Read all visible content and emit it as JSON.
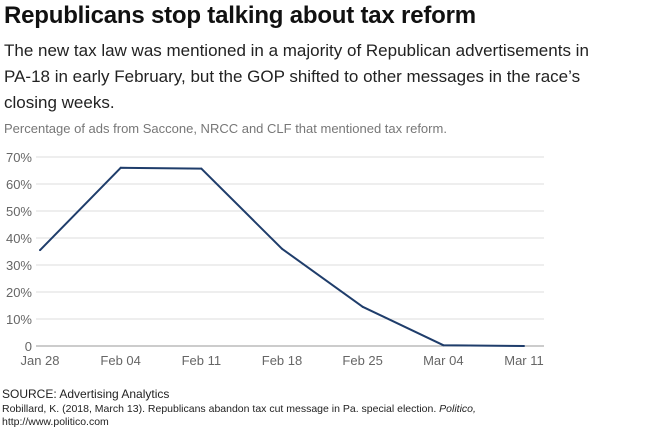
{
  "header": {
    "title": "Republicans stop talking about tax reform",
    "subtitle": "The new tax law was mentioned in a majority of Republican advertisements in PA-18 in early February, but the GOP shifted to other messages in the race’s closing weeks.",
    "note": "Percentage of ads from Saccone, NRCC and CLF that mentioned tax reform."
  },
  "footer": {
    "source": "SOURCE: Advertising Analytics",
    "citation_text": "Robillard, K. (2018, March 13). Republicans abandon tax cut message in Pa. special election.",
    "citation_publication": "Politico,",
    "citation_url": "http://www.politico.com"
  },
  "chart_data": {
    "type": "line",
    "x": [
      "Jan 28",
      "Feb 04",
      "Feb 11",
      "Feb 18",
      "Feb 25",
      "Mar 04",
      "Mar 11"
    ],
    "series": [
      {
        "values": [
          35.5,
          66,
          65.7,
          36,
          14.5,
          0.3,
          0
        ]
      }
    ],
    "ylim": [
      0,
      70
    ],
    "yticks": [
      0,
      10,
      20,
      30,
      40,
      50,
      60,
      70
    ],
    "ytick_labels": [
      "0",
      "10%",
      "20%",
      "30%",
      "40%",
      "50%",
      "60%",
      "70%"
    ],
    "grid": true,
    "line_color": "#1f3d6b",
    "grid_color": "#dddddd"
  }
}
